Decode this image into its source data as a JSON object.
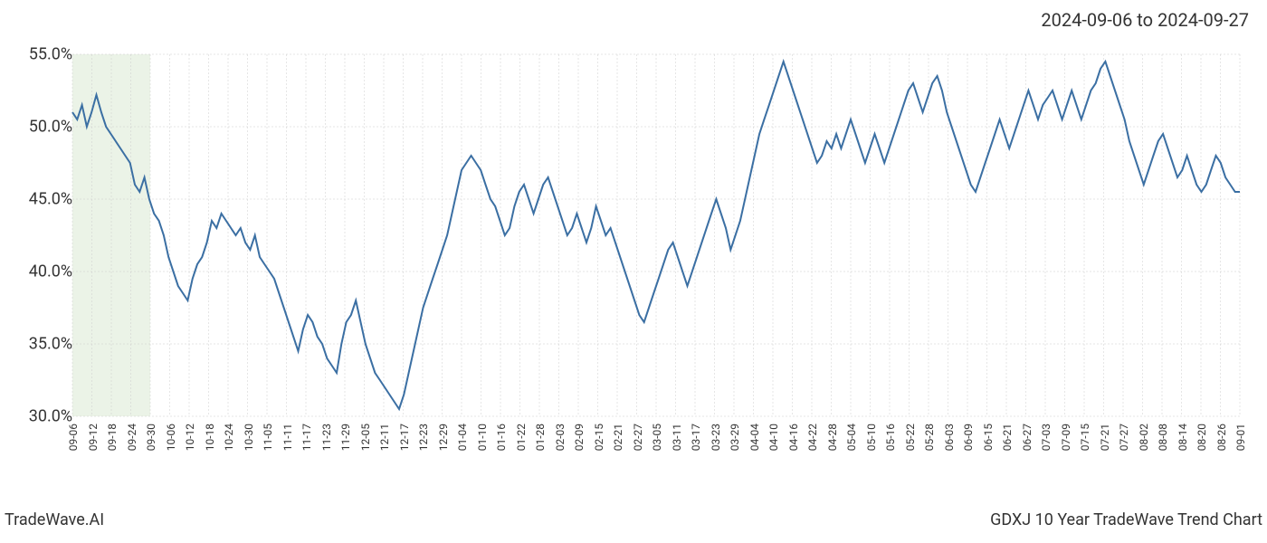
{
  "date_range": "2024-09-06 to 2024-09-27",
  "bottom_left": "TradeWave.AI",
  "bottom_right": "GDXJ 10 Year TradeWave Trend Chart",
  "chart": {
    "type": "line",
    "line_color": "#3b6fa3",
    "line_width": 2,
    "background_color": "#ffffff",
    "grid_color": "#cccccc",
    "highlight_band": {
      "start_label": "09-06",
      "end_label": "09-30",
      "color": "#d8e8d0",
      "opacity": 0.5
    },
    "ylim": [
      30,
      55
    ],
    "ytick_step": 5,
    "y_labels": [
      "30.0%",
      "35.0%",
      "40.0%",
      "45.0%",
      "50.0%",
      "55.0%"
    ],
    "x_labels": [
      "09-06",
      "09-12",
      "09-18",
      "09-24",
      "09-30",
      "10-06",
      "10-12",
      "10-18",
      "10-24",
      "10-30",
      "11-05",
      "11-11",
      "11-17",
      "11-23",
      "11-29",
      "12-05",
      "12-11",
      "12-17",
      "12-23",
      "12-29",
      "01-04",
      "01-10",
      "01-16",
      "01-22",
      "01-28",
      "02-03",
      "02-09",
      "02-15",
      "02-21",
      "02-27",
      "03-05",
      "03-11",
      "03-17",
      "03-23",
      "03-29",
      "04-04",
      "04-10",
      "04-16",
      "04-22",
      "04-28",
      "05-04",
      "05-10",
      "05-16",
      "05-22",
      "05-28",
      "06-03",
      "06-09",
      "06-15",
      "06-21",
      "06-27",
      "07-03",
      "07-09",
      "07-15",
      "07-21",
      "07-27",
      "08-02",
      "08-08",
      "08-14",
      "08-20",
      "08-26",
      "09-01"
    ],
    "values": [
      51.0,
      50.5,
      51.5,
      50.0,
      51.0,
      52.2,
      51.0,
      50.0,
      49.5,
      49.0,
      48.5,
      48.0,
      47.5,
      46.0,
      45.5,
      46.5,
      45.0,
      44.0,
      43.5,
      42.5,
      41.0,
      40.0,
      39.0,
      38.5,
      38.0,
      39.5,
      40.5,
      41.0,
      42.0,
      43.5,
      43.0,
      44.0,
      43.5,
      43.0,
      42.5,
      43.0,
      42.0,
      41.5,
      42.5,
      41.0,
      40.5,
      40.0,
      39.5,
      38.5,
      37.5,
      36.5,
      35.5,
      34.5,
      36.0,
      37.0,
      36.5,
      35.5,
      35.0,
      34.0,
      33.5,
      33.0,
      35.0,
      36.5,
      37.0,
      38.0,
      36.5,
      35.0,
      34.0,
      33.0,
      32.5,
      32.0,
      31.5,
      31.0,
      30.5,
      31.5,
      33.0,
      34.5,
      36.0,
      37.5,
      38.5,
      39.5,
      40.5,
      41.5,
      42.5,
      44.0,
      45.5,
      47.0,
      47.5,
      48.0,
      47.5,
      47.0,
      46.0,
      45.0,
      44.5,
      43.5,
      42.5,
      43.0,
      44.5,
      45.5,
      46.0,
      45.0,
      44.0,
      45.0,
      46.0,
      46.5,
      45.5,
      44.5,
      43.5,
      42.5,
      43.0,
      44.0,
      43.0,
      42.0,
      43.0,
      44.5,
      43.5,
      42.5,
      43.0,
      42.0,
      41.0,
      40.0,
      39.0,
      38.0,
      37.0,
      36.5,
      37.5,
      38.5,
      39.5,
      40.5,
      41.5,
      42.0,
      41.0,
      40.0,
      39.0,
      40.0,
      41.0,
      42.0,
      43.0,
      44.0,
      45.0,
      44.0,
      43.0,
      41.5,
      42.5,
      43.5,
      45.0,
      46.5,
      48.0,
      49.5,
      50.5,
      51.5,
      52.5,
      53.5,
      54.5,
      53.5,
      52.5,
      51.5,
      50.5,
      49.5,
      48.5,
      47.5,
      48.0,
      49.0,
      48.5,
      49.5,
      48.5,
      49.5,
      50.5,
      49.5,
      48.5,
      47.5,
      48.5,
      49.5,
      48.5,
      47.5,
      48.5,
      49.5,
      50.5,
      51.5,
      52.5,
      53.0,
      52.0,
      51.0,
      52.0,
      53.0,
      53.5,
      52.5,
      51.0,
      50.0,
      49.0,
      48.0,
      47.0,
      46.0,
      45.5,
      46.5,
      47.5,
      48.5,
      49.5,
      50.5,
      49.5,
      48.5,
      49.5,
      50.5,
      51.5,
      52.5,
      51.5,
      50.5,
      51.5,
      52.0,
      52.5,
      51.5,
      50.5,
      51.5,
      52.5,
      51.5,
      50.5,
      51.5,
      52.5,
      53.0,
      54.0,
      54.5,
      53.5,
      52.5,
      51.5,
      50.5,
      49.0,
      48.0,
      47.0,
      46.0,
      47.0,
      48.0,
      49.0,
      49.5,
      48.5,
      47.5,
      46.5,
      47.0,
      48.0,
      47.0,
      46.0,
      45.5,
      46.0,
      47.0,
      48.0,
      47.5,
      46.5,
      46.0,
      45.5,
      45.5
    ]
  }
}
